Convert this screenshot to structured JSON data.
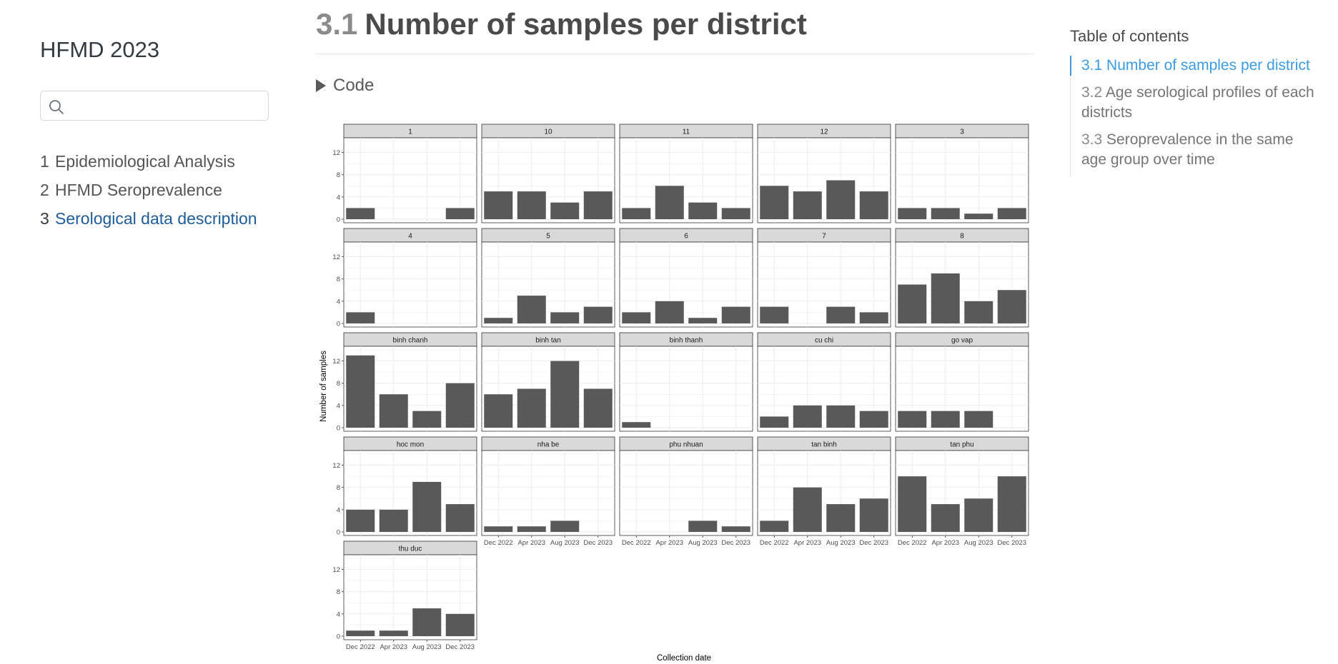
{
  "sidebar": {
    "site_title": "HFMD 2023",
    "search_placeholder": "",
    "items": [
      {
        "num": "1",
        "label": "Epidemiological Analysis",
        "active": false
      },
      {
        "num": "2",
        "label": "HFMD Seroprevalence",
        "active": false
      },
      {
        "num": "3",
        "label": "Serological data description",
        "active": true
      }
    ]
  },
  "main": {
    "section_num": "3.1",
    "title": "Number of samples per district",
    "code_toggle": "Code"
  },
  "toc": {
    "title": "Table of contents",
    "items": [
      {
        "num": "3.1",
        "label": "Number of samples per district",
        "active": true
      },
      {
        "num": "3.2",
        "label": "Age serological profiles of each districts",
        "active": false
      },
      {
        "num": "3.3",
        "label": "Seroprevalence in the same age group over time",
        "active": false
      }
    ]
  },
  "chart_data": {
    "type": "bar",
    "title": "",
    "xlabel": "Collection date",
    "ylabel": "Number of samples",
    "ylim": [
      0,
      14
    ],
    "yticks": [
      0,
      4,
      8,
      12
    ],
    "categories": [
      "Dec 2022",
      "Apr 2023",
      "Aug 2023",
      "Dec 2023"
    ],
    "facets": [
      {
        "name": "1",
        "values": [
          2,
          0,
          0,
          2
        ]
      },
      {
        "name": "10",
        "values": [
          5,
          5,
          3,
          5
        ]
      },
      {
        "name": "11",
        "values": [
          2,
          6,
          3,
          2
        ]
      },
      {
        "name": "12",
        "values": [
          6,
          5,
          7,
          5
        ]
      },
      {
        "name": "3",
        "values": [
          2,
          2,
          1,
          2
        ]
      },
      {
        "name": "4",
        "values": [
          2,
          0,
          0,
          0
        ]
      },
      {
        "name": "5",
        "values": [
          1,
          5,
          2,
          3
        ]
      },
      {
        "name": "6",
        "values": [
          2,
          4,
          1,
          3
        ]
      },
      {
        "name": "7",
        "values": [
          3,
          0,
          3,
          2
        ]
      },
      {
        "name": "8",
        "values": [
          7,
          9,
          4,
          6
        ]
      },
      {
        "name": "binh chanh",
        "values": [
          13,
          6,
          3,
          8
        ]
      },
      {
        "name": "binh tan",
        "values": [
          6,
          7,
          12,
          7
        ]
      },
      {
        "name": "binh thanh",
        "values": [
          1,
          0,
          0,
          0
        ]
      },
      {
        "name": "cu chi",
        "values": [
          2,
          4,
          4,
          3
        ]
      },
      {
        "name": "go vap",
        "values": [
          3,
          3,
          3,
          0
        ]
      },
      {
        "name": "hoc mon",
        "values": [
          4,
          4,
          9,
          5
        ]
      },
      {
        "name": "nha be",
        "values": [
          1,
          1,
          2,
          0
        ]
      },
      {
        "name": "phu nhuan",
        "values": [
          0,
          0,
          2,
          1
        ]
      },
      {
        "name": "tan binh",
        "values": [
          2,
          8,
          5,
          6
        ]
      },
      {
        "name": "tan phu",
        "values": [
          10,
          5,
          6,
          10
        ]
      },
      {
        "name": "thu duc",
        "values": [
          1,
          1,
          5,
          4
        ]
      }
    ]
  }
}
